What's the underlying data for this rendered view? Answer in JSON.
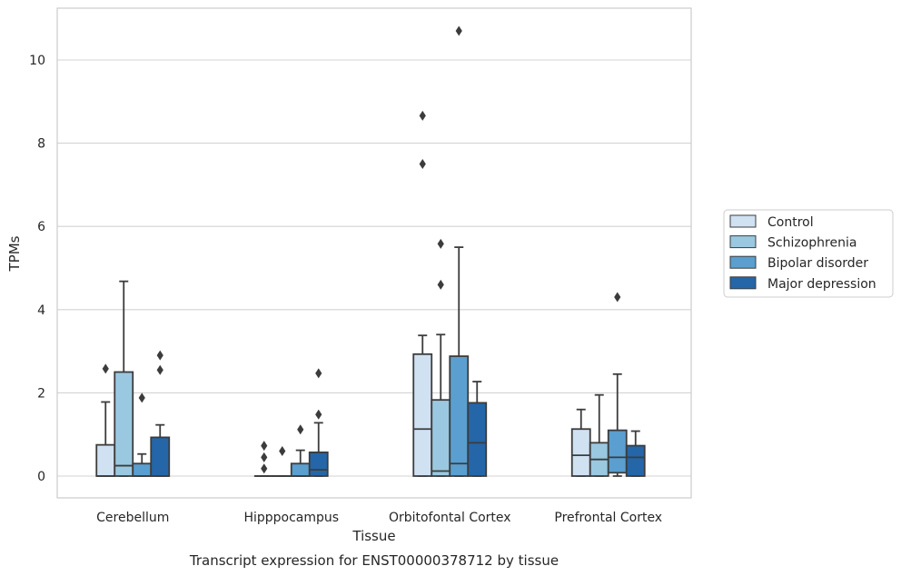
{
  "chart_data": {
    "type": "box",
    "xlabel": "Tissue",
    "ylabel": "TPMs",
    "caption": "Transcript expression for ENST00000378712 by tissue",
    "ylim": [
      -0.5,
      11.3
    ],
    "yticks": [
      0,
      2,
      4,
      6,
      8,
      10
    ],
    "grid": "horizontal",
    "legend_position": "right",
    "categories": [
      "Cerebellum",
      "Hipppocampus",
      "Orbitofontal Cortex",
      "Prefrontal Cortex"
    ],
    "series": [
      {
        "name": "Control",
        "color": "#d0e1f2",
        "boxes": [
          {
            "q1": 0,
            "median": 0,
            "q3": 0.75,
            "whisker_low": 0,
            "whisker_high": 1.78,
            "outliers": [
              2.58
            ]
          },
          {
            "q1": 0,
            "median": 0,
            "q3": 0,
            "whisker_low": 0,
            "whisker_high": 0,
            "outliers": [
              0.18,
              0.45,
              0.73
            ]
          },
          {
            "q1": 0,
            "median": 1.13,
            "q3": 2.93,
            "whisker_low": 0,
            "whisker_high": 3.38,
            "outliers": [
              7.5,
              8.66
            ]
          },
          {
            "q1": 0,
            "median": 0.5,
            "q3": 1.13,
            "whisker_low": 0,
            "whisker_high": 1.6,
            "outliers": []
          }
        ]
      },
      {
        "name": "Schizophrenia",
        "color": "#9ac8e0",
        "boxes": [
          {
            "q1": 0,
            "median": 0.25,
            "q3": 2.5,
            "whisker_low": 0,
            "whisker_high": 4.68,
            "outliers": []
          },
          {
            "q1": 0,
            "median": 0,
            "q3": 0,
            "whisker_low": 0,
            "whisker_high": 0,
            "outliers": [
              0.6
            ]
          },
          {
            "q1": 0,
            "median": 0.12,
            "q3": 1.83,
            "whisker_low": 0,
            "whisker_high": 3.4,
            "outliers": [
              4.6,
              5.58
            ]
          },
          {
            "q1": 0,
            "median": 0.4,
            "q3": 0.8,
            "whisker_low": 0,
            "whisker_high": 1.95,
            "outliers": []
          }
        ]
      },
      {
        "name": "Bipolar disorder",
        "color": "#5a9fcf",
        "boxes": [
          {
            "q1": 0,
            "median": 0,
            "q3": 0.3,
            "whisker_low": 0,
            "whisker_high": 0.53,
            "outliers": [
              1.88
            ]
          },
          {
            "q1": 0,
            "median": 0,
            "q3": 0.3,
            "whisker_low": 0,
            "whisker_high": 0.62,
            "outliers": [
              1.12
            ]
          },
          {
            "q1": 0,
            "median": 0.3,
            "q3": 2.88,
            "whisker_low": 0,
            "whisker_high": 5.5,
            "outliers": [
              10.7
            ]
          },
          {
            "q1": 0.08,
            "median": 0.45,
            "q3": 1.1,
            "whisker_low": 0,
            "whisker_high": 2.45,
            "outliers": [
              4.3
            ]
          }
        ]
      },
      {
        "name": "Major depression",
        "color": "#2466a8",
        "boxes": [
          {
            "q1": 0,
            "median": 0,
            "q3": 0.93,
            "whisker_low": 0,
            "whisker_high": 1.23,
            "outliers": [
              2.55,
              2.9
            ]
          },
          {
            "q1": 0,
            "median": 0.15,
            "q3": 0.57,
            "whisker_low": 0,
            "whisker_high": 1.28,
            "outliers": [
              1.48,
              2.47
            ]
          },
          {
            "q1": 0,
            "median": 0.8,
            "q3": 1.76,
            "whisker_low": 0,
            "whisker_high": 2.27,
            "outliers": []
          },
          {
            "q1": 0,
            "median": 0.45,
            "q3": 0.73,
            "whisker_low": 0,
            "whisker_high": 1.08,
            "outliers": []
          }
        ]
      }
    ]
  }
}
